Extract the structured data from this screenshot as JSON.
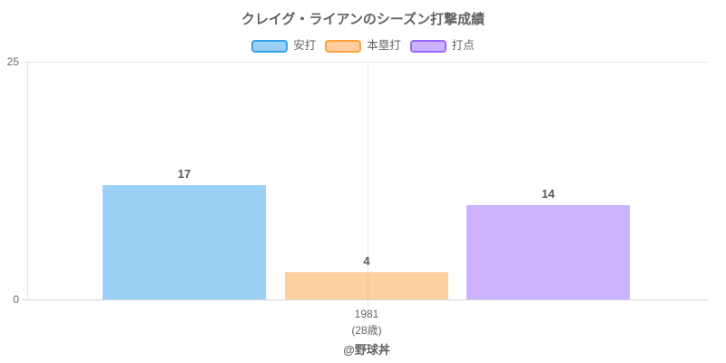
{
  "title": "クレイグ・ライアンのシーズン打撃成績",
  "footer_credit": "@野球丼",
  "chart_data": {
    "type": "bar",
    "title": "クレイグ・ライアンのシーズン打撃成績",
    "categories": [
      "1981 (28歳)"
    ],
    "x_tick": {
      "line1": "1981",
      "line2": "(28歳)"
    },
    "series": [
      {
        "name": "安打",
        "values": [
          17
        ],
        "fill": "rgba(54, 162, 235, 0.5)",
        "border_color": "#36A2EB"
      },
      {
        "name": "本塁打",
        "values": [
          4
        ],
        "fill": "rgba(255, 159, 64, 0.5)",
        "border_color": "#FF9F40"
      },
      {
        "name": "打点",
        "values": [
          14
        ],
        "fill": "rgba(153, 102, 255, 0.5)",
        "border_color": "#9966FF"
      }
    ],
    "yticks": [
      "25",
      "0"
    ],
    "ylim": [
      0,
      25
    ],
    "bar_render_max": 35.4,
    "legend_position": "top",
    "grid": "top-horizontal-and-category-vertical",
    "value_labels": true
  }
}
